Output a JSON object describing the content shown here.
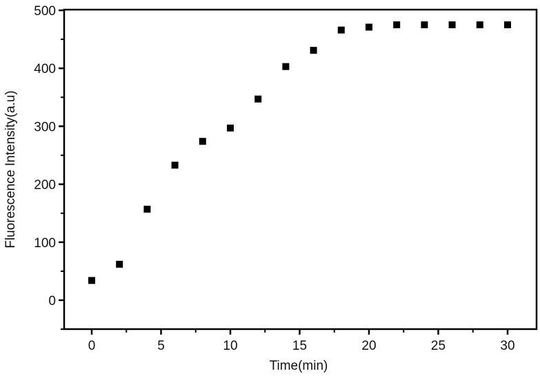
{
  "chart_data": {
    "type": "scatter",
    "title": "",
    "xlabel": "Time(min)",
    "ylabel": "Fluorescence Intensity(a.u)",
    "xlim": [
      -2,
      32
    ],
    "ylim": [
      -60,
      500
    ],
    "x_ticks": [
      0,
      5,
      10,
      15,
      20,
      25,
      30
    ],
    "x_tick_labels": [
      "0",
      "5",
      "10",
      "15",
      "20",
      "25",
      "30"
    ],
    "y_ticks": [
      0,
      100,
      200,
      300,
      400,
      500
    ],
    "y_tick_labels": [
      "0",
      "100",
      "200",
      "300",
      "400",
      "500"
    ],
    "grid": false,
    "legend": null,
    "marker": "square",
    "marker_color": "#000000",
    "series": [
      {
        "name": "Fluorescence Intensity",
        "x": [
          0,
          2,
          4,
          6,
          8,
          10,
          12,
          14,
          16,
          18,
          20,
          22,
          24,
          26,
          28,
          30
        ],
        "y": [
          34,
          62,
          157,
          233,
          274,
          297,
          347,
          403,
          431,
          466,
          471,
          475,
          475,
          475,
          475,
          475
        ]
      }
    ]
  }
}
